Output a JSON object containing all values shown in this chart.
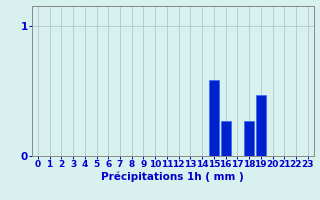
{
  "hours": [
    0,
    1,
    2,
    3,
    4,
    5,
    6,
    7,
    8,
    9,
    10,
    11,
    12,
    13,
    14,
    15,
    16,
    17,
    18,
    19,
    20,
    21,
    22,
    23
  ],
  "values": [
    0,
    0,
    0,
    0,
    0,
    0,
    0,
    0,
    0,
    0,
    0,
    0,
    0,
    0,
    0,
    0.58,
    0.27,
    0,
    0.27,
    0.47,
    0,
    0,
    0,
    0
  ],
  "bar_color": "#0022cc",
  "bar_edge_color": "#3366ff",
  "background_color": "#d8f0ee",
  "grid_color": "#aacccc",
  "axis_color": "#888888",
  "xlabel": "Précipitations 1h ( mm )",
  "xlabel_fontsize": 7.5,
  "ytick_labels": [
    "0",
    "1"
  ],
  "ytick_values": [
    0,
    1
  ],
  "ylim": [
    0,
    1.15
  ],
  "xlim": [
    -0.5,
    23.5
  ],
  "tick_color": "#0000cc",
  "tick_fontsize": 6.5,
  "ylabel_fontsize": 7.5
}
